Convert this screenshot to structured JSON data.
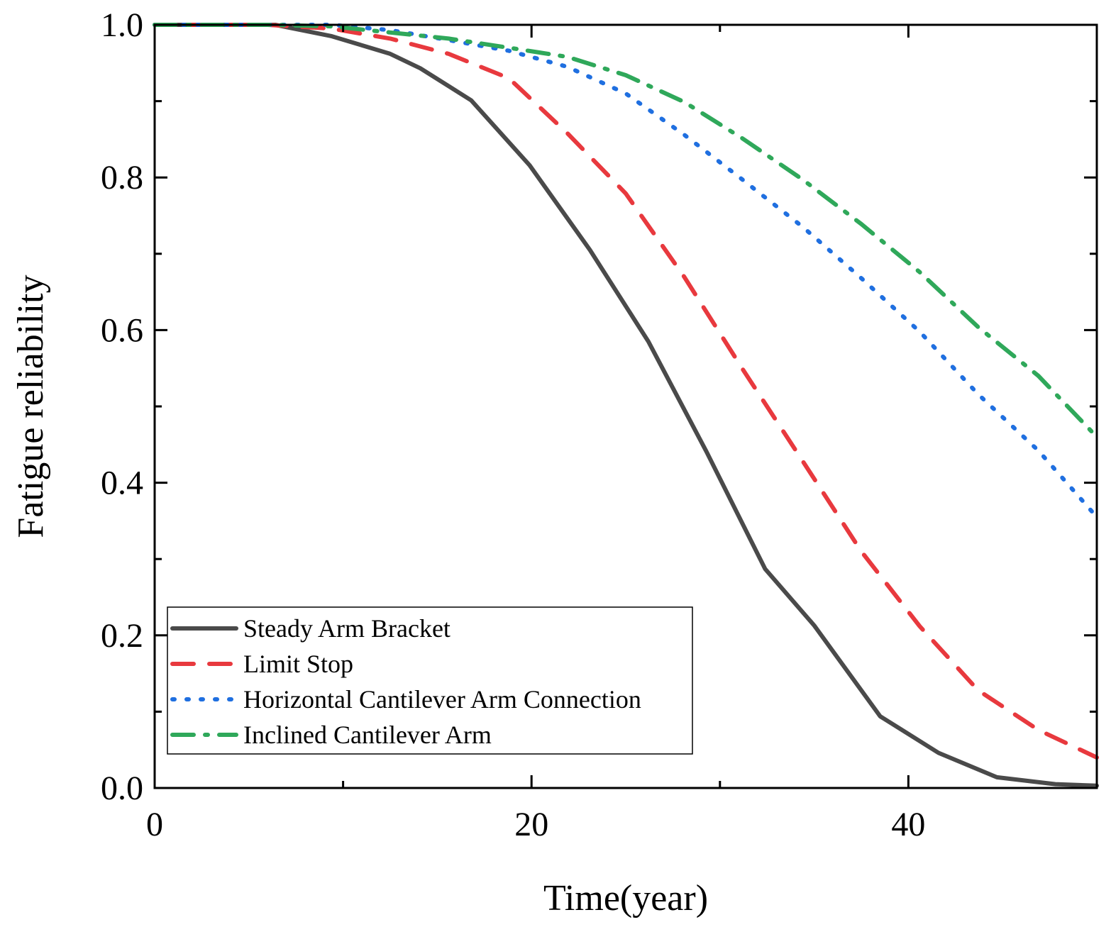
{
  "chart_data": {
    "type": "line",
    "title": "",
    "xlabel": "Time(year)",
    "ylabel": "Fatigue reliability",
    "xlim": [
      0,
      50
    ],
    "ylim": [
      0,
      1.0
    ],
    "xticks": [
      0,
      20,
      40
    ],
    "xtick_labels": [
      "0",
      "20",
      "40"
    ],
    "yticks": [
      0,
      0.2,
      0.4,
      0.6,
      0.8,
      1.0
    ],
    "ytick_labels": [
      "0.0",
      "0.2",
      "0.4",
      "0.6",
      "0.8",
      "1.0"
    ],
    "legend_position": "bottom-left",
    "series": [
      {
        "name": "Steady Arm Bracket",
        "color": "#4a4a4a",
        "style": "solid",
        "x": [
          0,
          6.4,
          9.4,
          12.5,
          14.1,
          16.8,
          19.9,
          23.1,
          26.2,
          29.3,
          32.4,
          35.0,
          38.5,
          41.6,
          44.7,
          47.8,
          50
        ],
        "y": [
          1.0,
          1.0,
          0.985,
          0.962,
          0.943,
          0.901,
          0.816,
          0.705,
          0.585,
          0.44,
          0.287,
          0.213,
          0.094,
          0.046,
          0.014,
          0.005,
          0.003
        ]
      },
      {
        "name": "Limit Stop",
        "color": "#e8393e",
        "style": "dash",
        "x": [
          0,
          6.0,
          9.4,
          12.5,
          15.6,
          18.8,
          21.9,
          25.0,
          28.1,
          31.2,
          34.4,
          37.5,
          40.6,
          43.7,
          46.9,
          50
        ],
        "y": [
          1.0,
          1.0,
          0.995,
          0.982,
          0.962,
          0.93,
          0.858,
          0.779,
          0.67,
          0.549,
          0.428,
          0.31,
          0.212,
          0.128,
          0.076,
          0.04
        ]
      },
      {
        "name": "Horizontal Cantilever Arm Connection",
        "color": "#1f6fe0",
        "style": "dot",
        "x": [
          0,
          9.4,
          12.5,
          15.6,
          18.8,
          21.9,
          25.0,
          28.1,
          31.2,
          34.4,
          37.5,
          40.6,
          43.7,
          46.9,
          50
        ],
        "y": [
          1.0,
          1.0,
          0.993,
          0.98,
          0.966,
          0.945,
          0.91,
          0.856,
          0.797,
          0.735,
          0.668,
          0.598,
          0.516,
          0.442,
          0.355
        ]
      },
      {
        "name": "Inclined Cantilever Arm",
        "color": "#2fa85a",
        "style": "dashdot",
        "x": [
          0,
          6.2,
          9.4,
          12.5,
          15.6,
          18.8,
          21.9,
          25.0,
          28.1,
          31.2,
          34.4,
          37.5,
          40.6,
          43.7,
          46.9,
          50
        ],
        "y": [
          1.0,
          1.0,
          0.998,
          0.99,
          0.982,
          0.97,
          0.958,
          0.934,
          0.899,
          0.851,
          0.797,
          0.739,
          0.676,
          0.604,
          0.54,
          0.46
        ]
      }
    ]
  }
}
